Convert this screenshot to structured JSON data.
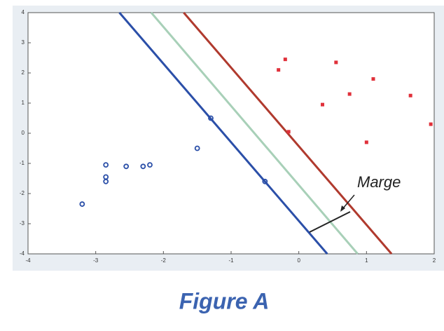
{
  "chart_data": {
    "type": "scatter",
    "annotation": "Marge",
    "caption": "Figure A",
    "xlim": [
      -4,
      2
    ],
    "ylim": [
      -4,
      4
    ],
    "xticks": [
      -4,
      -3,
      -2,
      -1,
      0,
      1,
      2
    ],
    "yticks": [
      -4,
      -3,
      -2,
      -1,
      0,
      1,
      2,
      3,
      4
    ],
    "series": [
      {
        "mode": "line",
        "color": "#2b4fa8",
        "x": [
          -2.65,
          0.42
        ],
        "values": [
          4,
          -4
        ]
      },
      {
        "mode": "line",
        "color": "#a8d0b8",
        "x": [
          -2.18,
          0.87
        ],
        "values": [
          4,
          -4
        ]
      },
      {
        "mode": "line",
        "color": "#b03a2e",
        "x": [
          -1.7,
          1.37
        ],
        "values": [
          4,
          -4
        ]
      },
      {
        "mode": "circle",
        "color": "#2b4fa8",
        "x": [
          -3.2,
          -2.85,
          -2.85,
          -2.85,
          -2.55,
          -2.3,
          -2.2,
          -1.5,
          -1.3,
          -0.5
        ],
        "values": [
          -2.35,
          -1.05,
          -1.45,
          -1.6,
          -1.1,
          -1.1,
          -1.05,
          -0.5,
          0.5,
          -1.6
        ]
      },
      {
        "mode": "square",
        "color": "#e0303a",
        "x": [
          -0.3,
          -0.2,
          -0.15,
          0.35,
          0.55,
          0.75,
          1.0,
          1.1,
          1.65,
          1.95
        ],
        "values": [
          2.1,
          2.45,
          0.05,
          0.95,
          2.35,
          1.3,
          -0.3,
          1.8,
          1.25,
          0.3
        ]
      }
    ]
  }
}
